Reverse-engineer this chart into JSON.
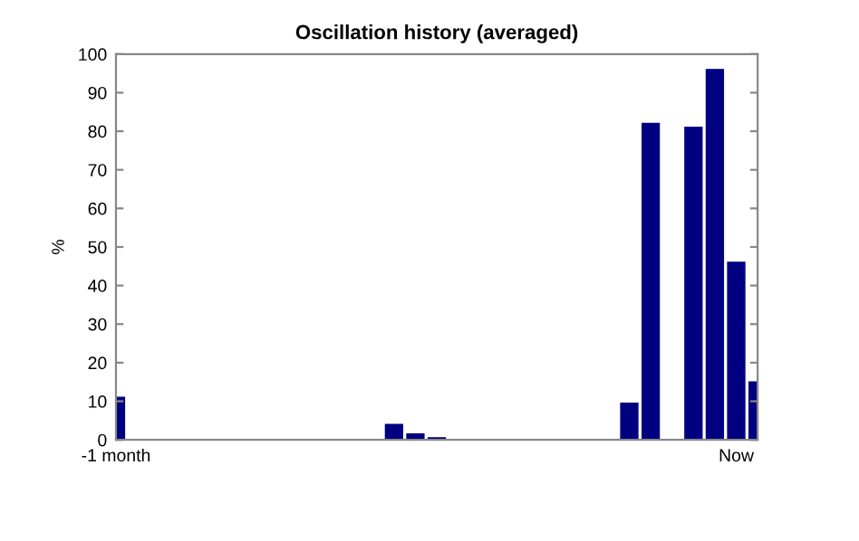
{
  "chart_data": {
    "type": "bar",
    "title": "Oscillation history (averaged)",
    "ylabel": "%",
    "categories": [
      "-1 month",
      null,
      null,
      null,
      null,
      null,
      null,
      null,
      null,
      null,
      null,
      null,
      null,
      null,
      null,
      null,
      null,
      null,
      null,
      null,
      null,
      null,
      null,
      null,
      null,
      null,
      null,
      null,
      null,
      "Now",
      null
    ],
    "values": [
      11,
      0,
      0,
      0,
      0,
      0,
      0,
      0,
      0,
      0,
      0,
      0,
      0,
      4,
      1.5,
      0.5,
      0,
      0,
      0,
      0,
      0,
      0,
      0,
      0,
      9.5,
      82,
      0,
      81,
      96,
      46,
      15
    ],
    "color": "#000080",
    "ylim": [
      0,
      100
    ],
    "yticks": [
      0,
      10,
      20,
      30,
      40,
      50,
      60,
      70,
      80,
      90,
      100
    ],
    "grid": false,
    "legend": false
  }
}
